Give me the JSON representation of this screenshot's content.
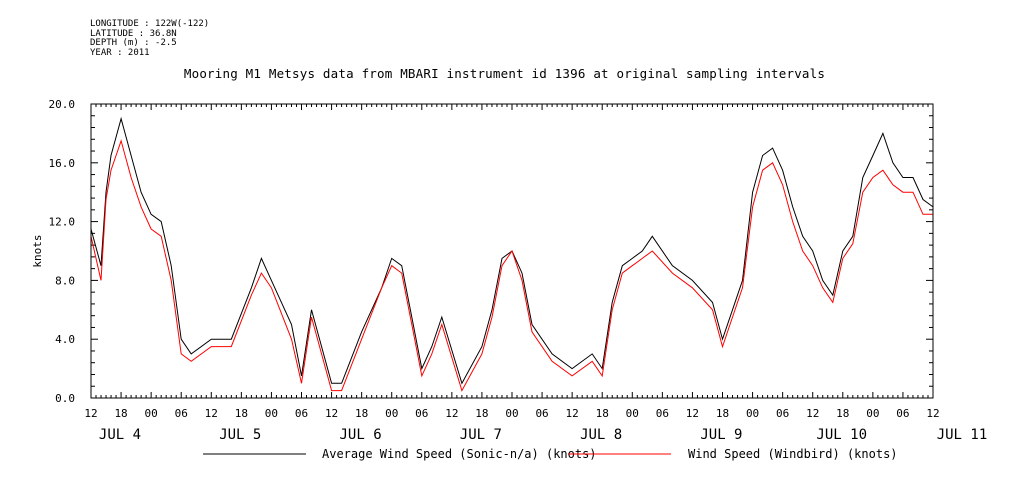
{
  "header": {
    "meta_lines": [
      "LONGITUDE : 122W(-122)",
      "LATITUDE : 36.8N",
      "DEPTH (m) : -2.5",
      "YEAR : 2011"
    ],
    "title": "Mooring M1 Metsys data from MBARI instrument id 1396 at original sampling intervals"
  },
  "chart_data": {
    "type": "line",
    "title": "Mooring M1 Metsys data from MBARI instrument id 1396 at original sampling intervals",
    "xlabel": "",
    "ylabel": "knots",
    "ylim": [
      0,
      20
    ],
    "y_ticks": [
      "0.0",
      "4.0",
      "8.0",
      "12.0",
      "16.0",
      "20.0"
    ],
    "x_range_hours_label": [
      "2011-07-04 12:00",
      "2011-07-11 12:00"
    ],
    "x_tick_labels": [
      "12",
      "18",
      "00",
      "06",
      "12",
      "18",
      "00",
      "06",
      "12",
      "18",
      "00",
      "06",
      "12",
      "18",
      "00",
      "06",
      "12",
      "18",
      "00",
      "06",
      "12",
      "18",
      "00",
      "06",
      "12",
      "18",
      "00",
      "06",
      "12"
    ],
    "date_labels": [
      "JUL 4",
      "JUL 5",
      "JUL 6",
      "JUL 7",
      "JUL 8",
      "JUL 9",
      "JUL 10",
      "JUL 11"
    ],
    "grid": false,
    "legend_position": "bottom",
    "x_time_ticks": [
      "2011-07-04 12:00",
      "2011-07-04 18:00",
      "2011-07-05 00:00",
      "2011-07-05 06:00",
      "2011-07-05 12:00",
      "2011-07-05 18:00",
      "2011-07-06 00:00",
      "2011-07-06 06:00",
      "2011-07-06 12:00",
      "2011-07-06 18:00",
      "2011-07-07 00:00",
      "2011-07-07 06:00",
      "2011-07-07 12:00",
      "2011-07-07 18:00",
      "2011-07-08 00:00",
      "2011-07-08 06:00",
      "2011-07-08 12:00",
      "2011-07-08 18:00",
      "2011-07-09 00:00",
      "2011-07-09 06:00",
      "2011-07-09 12:00",
      "2011-07-09 18:00",
      "2011-07-10 00:00",
      "2011-07-10 06:00",
      "2011-07-10 12:00",
      "2011-07-10 18:00",
      "2011-07-11 00:00",
      "2011-07-11 06:00",
      "2011-07-11 12:00"
    ],
    "series": [
      {
        "name": "Average Wind Speed (Sonic-n/a) (knots)",
        "color": "#000000",
        "x": [
          "2011-07-04 12:00",
          "2011-07-04 14:00",
          "2011-07-04 15:00",
          "2011-07-04 16:00",
          "2011-07-04 18:00",
          "2011-07-04 20:00",
          "2011-07-04 22:00",
          "2011-07-05 00:00",
          "2011-07-05 02:00",
          "2011-07-05 04:00",
          "2011-07-05 06:00",
          "2011-07-05 08:00",
          "2011-07-05 12:00",
          "2011-07-05 16:00",
          "2011-07-05 20:00",
          "2011-07-05 22:00",
          "2011-07-06 00:00",
          "2011-07-06 04:00",
          "2011-07-06 06:00",
          "2011-07-06 08:00",
          "2011-07-06 12:00",
          "2011-07-06 14:00",
          "2011-07-06 18:00",
          "2011-07-06 22:00",
          "2011-07-07 00:00",
          "2011-07-07 02:00",
          "2011-07-07 04:00",
          "2011-07-07 06:00",
          "2011-07-07 08:00",
          "2011-07-07 10:00",
          "2011-07-07 14:00",
          "2011-07-07 18:00",
          "2011-07-07 20:00",
          "2011-07-07 22:00",
          "2011-07-08 00:00",
          "2011-07-08 02:00",
          "2011-07-08 04:00",
          "2011-07-08 08:00",
          "2011-07-08 12:00",
          "2011-07-08 16:00",
          "2011-07-08 18:00",
          "2011-07-08 20:00",
          "2011-07-08 22:00",
          "2011-07-09 00:00",
          "2011-07-09 02:00",
          "2011-07-09 04:00",
          "2011-07-09 08:00",
          "2011-07-09 12:00",
          "2011-07-09 16:00",
          "2011-07-09 18:00",
          "2011-07-09 20:00",
          "2011-07-09 22:00",
          "2011-07-10 00:00",
          "2011-07-10 02:00",
          "2011-07-10 04:00",
          "2011-07-10 06:00",
          "2011-07-10 08:00",
          "2011-07-10 10:00",
          "2011-07-10 12:00",
          "2011-07-10 14:00",
          "2011-07-10 16:00",
          "2011-07-10 18:00",
          "2011-07-10 20:00",
          "2011-07-10 22:00",
          "2011-07-11 00:00",
          "2011-07-11 02:00",
          "2011-07-11 04:00",
          "2011-07-11 06:00",
          "2011-07-11 08:00",
          "2011-07-11 10:00",
          "2011-07-11 12:00"
        ],
        "values": [
          11.5,
          9.0,
          14.0,
          16.5,
          19.0,
          16.5,
          14.0,
          12.5,
          12.0,
          9.0,
          4.0,
          3.0,
          4.0,
          4.0,
          7.5,
          9.5,
          8.0,
          5.0,
          1.5,
          6.0,
          1.0,
          1.0,
          4.5,
          7.5,
          9.5,
          9.0,
          5.5,
          2.0,
          3.5,
          5.5,
          1.0,
          3.5,
          6.0,
          9.5,
          10.0,
          8.5,
          5.0,
          3.0,
          2.0,
          3.0,
          2.0,
          6.5,
          9.0,
          9.5,
          10.0,
          11.0,
          9.0,
          8.0,
          6.5,
          4.0,
          6.0,
          8.0,
          14.0,
          16.5,
          17.0,
          15.5,
          13.0,
          11.0,
          10.0,
          8.0,
          7.0,
          10.0,
          11.0,
          15.0,
          16.5,
          18.0,
          16.0,
          15.0,
          15.0,
          13.5,
          13.0
        ]
      },
      {
        "name": "Wind Speed (Windbird) (knots)",
        "color": "#ff0000",
        "x": [
          "2011-07-04 12:00",
          "2011-07-04 14:00",
          "2011-07-04 15:00",
          "2011-07-04 16:00",
          "2011-07-04 18:00",
          "2011-07-04 20:00",
          "2011-07-04 22:00",
          "2011-07-05 00:00",
          "2011-07-05 02:00",
          "2011-07-05 04:00",
          "2011-07-05 06:00",
          "2011-07-05 08:00",
          "2011-07-05 12:00",
          "2011-07-05 16:00",
          "2011-07-05 20:00",
          "2011-07-05 22:00",
          "2011-07-06 00:00",
          "2011-07-06 04:00",
          "2011-07-06 06:00",
          "2011-07-06 08:00",
          "2011-07-06 12:00",
          "2011-07-06 14:00",
          "2011-07-06 18:00",
          "2011-07-06 22:00",
          "2011-07-07 00:00",
          "2011-07-07 02:00",
          "2011-07-07 04:00",
          "2011-07-07 06:00",
          "2011-07-07 08:00",
          "2011-07-07 10:00",
          "2011-07-07 14:00",
          "2011-07-07 18:00",
          "2011-07-07 20:00",
          "2011-07-07 22:00",
          "2011-07-08 00:00",
          "2011-07-08 02:00",
          "2011-07-08 04:00",
          "2011-07-08 08:00",
          "2011-07-08 12:00",
          "2011-07-08 16:00",
          "2011-07-08 18:00",
          "2011-07-08 20:00",
          "2011-07-08 22:00",
          "2011-07-09 00:00",
          "2011-07-09 02:00",
          "2011-07-09 04:00",
          "2011-07-09 08:00",
          "2011-07-09 12:00",
          "2011-07-09 16:00",
          "2011-07-09 18:00",
          "2011-07-09 20:00",
          "2011-07-09 22:00",
          "2011-07-10 00:00",
          "2011-07-10 02:00",
          "2011-07-10 04:00",
          "2011-07-10 06:00",
          "2011-07-10 08:00",
          "2011-07-10 10:00",
          "2011-07-10 12:00",
          "2011-07-10 14:00",
          "2011-07-10 16:00",
          "2011-07-10 18:00",
          "2011-07-10 20:00",
          "2011-07-10 22:00",
          "2011-07-11 00:00",
          "2011-07-11 02:00",
          "2011-07-11 04:00",
          "2011-07-11 06:00",
          "2011-07-11 08:00",
          "2011-07-11 10:00",
          "2011-07-11 12:00"
        ],
        "values": [
          11.0,
          8.0,
          13.5,
          15.5,
          17.5,
          15.0,
          13.0,
          11.5,
          11.0,
          8.0,
          3.0,
          2.5,
          3.5,
          3.5,
          7.0,
          8.5,
          7.5,
          4.0,
          1.0,
          5.5,
          0.5,
          0.5,
          4.0,
          7.5,
          9.0,
          8.5,
          5.0,
          1.5,
          3.0,
          5.0,
          0.5,
          3.0,
          5.5,
          9.0,
          10.0,
          8.0,
          4.5,
          2.5,
          1.5,
          2.5,
          1.5,
          6.0,
          8.5,
          9.0,
          9.5,
          10.0,
          8.5,
          7.5,
          6.0,
          3.5,
          5.5,
          7.5,
          13.0,
          15.5,
          16.0,
          14.5,
          12.0,
          10.0,
          9.0,
          7.5,
          6.5,
          9.5,
          10.5,
          14.0,
          15.0,
          15.5,
          14.5,
          14.0,
          14.0,
          12.5,
          12.5
        ]
      }
    ]
  },
  "legend": {
    "items": [
      {
        "label": "Average Wind Speed (Sonic-n/a) (knots)",
        "color": "#000000"
      },
      {
        "label": "Wind Speed (Windbird) (knots)",
        "color": "#ff0000"
      }
    ]
  }
}
